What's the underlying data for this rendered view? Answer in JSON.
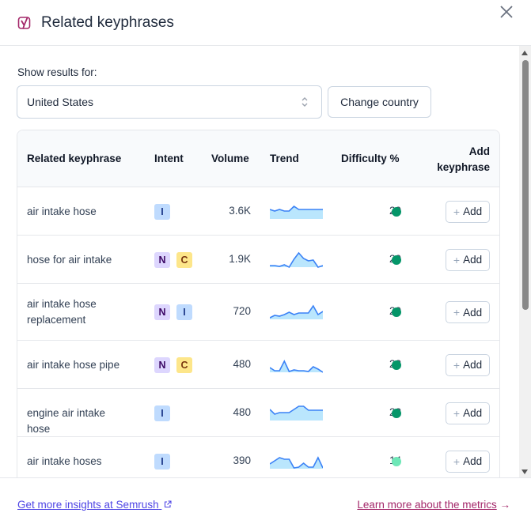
{
  "header": {
    "title": "Related keyphrases",
    "logo": "yoast-logo-icon",
    "close": "close-icon"
  },
  "filter": {
    "label": "Show results for:",
    "country_value": "United States",
    "change_country_label": "Change country"
  },
  "table": {
    "columns": {
      "keyphrase": "Related keyphrase",
      "intent": "Intent",
      "volume": "Volume",
      "trend": "Trend",
      "difficulty": "Difficulty %",
      "add_line1": "Add",
      "add_line2": "keyphrase"
    },
    "add_label": "Add",
    "rows": [
      {
        "keyphrase": "air intake hose",
        "intents": [
          "I"
        ],
        "volume": "3.6K",
        "difficulty": "20",
        "difficulty_color": "#059669",
        "trend": [
          0.6,
          0.5,
          0.6,
          0.5,
          0.5,
          0.8,
          0.6,
          0.6,
          0.6,
          0.6,
          0.6,
          0.6
        ]
      },
      {
        "keyphrase": "hose for air intake",
        "intents": [
          "N",
          "C"
        ],
        "volume": "1.9K",
        "difficulty": "20",
        "difficulty_color": "#059669",
        "trend": [
          0.1,
          0.1,
          0.05,
          0.15,
          0.0,
          0.5,
          0.9,
          0.55,
          0.4,
          0.45,
          0.0,
          0.1
        ]
      },
      {
        "keyphrase": "air intake hose replacement",
        "intents": [
          "N",
          "I"
        ],
        "volume": "720",
        "difficulty": "20",
        "difficulty_color": "#059669",
        "trend": [
          0.1,
          0.25,
          0.2,
          0.3,
          0.45,
          0.3,
          0.4,
          0.4,
          0.4,
          0.85,
          0.3,
          0.5
        ]
      },
      {
        "keyphrase": "air intake hose pipe",
        "intents": [
          "N",
          "C"
        ],
        "volume": "480",
        "difficulty": "22",
        "difficulty_color": "#059669",
        "trend": [
          0.3,
          0.1,
          0.1,
          0.7,
          0.05,
          0.15,
          0.1,
          0.1,
          0.05,
          0.35,
          0.2,
          0.0
        ]
      },
      {
        "keyphrase": "engine air intake hose",
        "intents": [
          "I"
        ],
        "volume": "480",
        "difficulty": "22",
        "difficulty_color": "#059669",
        "trend": [
          0.7,
          0.4,
          0.5,
          0.5,
          0.5,
          0.7,
          0.9,
          0.9,
          0.65,
          0.65,
          0.65,
          0.65
        ]
      },
      {
        "keyphrase": "air intake hoses",
        "intents": [
          "I"
        ],
        "volume": "390",
        "difficulty": "14",
        "difficulty_color": "#6ee7b7",
        "trend": [
          0.3,
          0.5,
          0.7,
          0.6,
          0.6,
          0.05,
          0.1,
          0.35,
          0.1,
          0.1,
          0.7,
          0.05
        ]
      }
    ]
  },
  "footer": {
    "semrush_link": "Get more insights at Semrush",
    "metrics_link": "Learn more about the metrics",
    "metrics_arrow": "→"
  }
}
